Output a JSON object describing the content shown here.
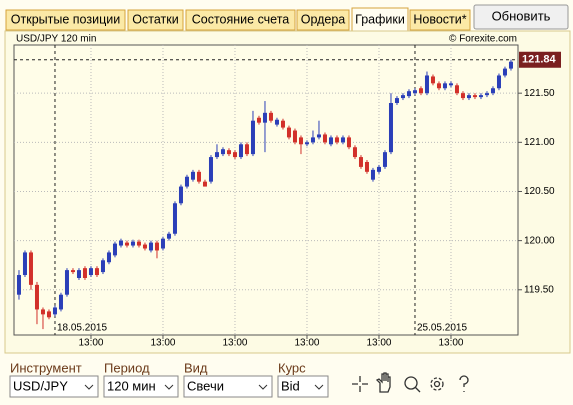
{
  "tabs": [
    "Открытые позиции",
    "Остатки",
    "Состояние счета",
    "Ордера",
    "Графики",
    "Новости*"
  ],
  "active_tab": 4,
  "button": "Обновить",
  "chart_data": {
    "type": "candlestick",
    "title": "USD/JPY 120 min",
    "source": "© Forexite.com",
    "up_color": "#2b3fb8",
    "down_color": "#d2302a",
    "xlim": [
      -0.83,
      83.17
    ],
    "ylim": [
      119.04,
      121.99
    ],
    "yticks": [
      {
        "value": 119.5,
        "label": "119.50"
      },
      {
        "value": 120,
        "label": "120.00"
      },
      {
        "value": 120.5,
        "label": "120.50"
      },
      {
        "value": 121,
        "label": "121.00"
      },
      {
        "value": 121.5,
        "label": "121.50"
      }
    ],
    "xticks": [
      {
        "value": 12,
        "label": "13:00"
      },
      {
        "value": 24,
        "label": "13:00"
      },
      {
        "value": 36,
        "label": "13:00"
      },
      {
        "value": 48,
        "label": "13:00"
      },
      {
        "value": 60,
        "label": "13:00"
      },
      {
        "value": 72,
        "label": "13:00"
      }
    ],
    "date_markers": [
      {
        "value": 6,
        "label": "18.05.2015"
      },
      {
        "value": 66,
        "label": "25.05.2015"
      }
    ],
    "current_price": 121.84,
    "grid": true,
    "open": [
      119.45,
      119.65,
      119.88,
      119.55,
      119.3,
      119.28,
      119.25,
      119.3,
      119.45,
      119.7,
      119.62,
      119.72,
      119.65,
      119.72,
      119.68,
      119.78,
      119.85,
      119.95,
      119.98,
      119.95,
      119.99,
      119.96,
      119.9,
      119.98,
      119.92,
      120.02,
      120.07,
      120.38,
      120.55,
      120.62,
      120.7,
      120.6,
      120.6,
      120.85,
      120.88,
      120.92,
      120.9,
      120.85,
      120.98,
      120.88,
      121.25,
      121.2,
      121.3,
      121.18,
      121.22,
      121.15,
      121.12,
      121.05,
      120.98,
      121.0,
      121.05,
      121.08,
      120.98,
      121.05,
      121.0,
      121.05,
      120.95,
      120.85,
      120.8,
      120.62,
      120.7,
      120.75,
      120.9,
      121.4,
      121.45,
      121.47,
      121.5,
      121.55,
      121.5,
      121.67,
      121.6,
      121.55,
      121.58,
      121.58,
      121.5,
      121.45,
      121.48,
      121.46,
      121.48,
      121.5,
      121.55,
      121.68,
      121.75
    ],
    "high": [
      119.7,
      119.9,
      119.9,
      119.58,
      119.32,
      119.3,
      119.34,
      119.47,
      119.72,
      119.72,
      119.72,
      119.74,
      119.74,
      119.74,
      119.82,
      119.9,
      119.99,
      120.02,
      120.0,
      120.01,
      120.01,
      119.98,
      120.0,
      120.0,
      120.04,
      120.09,
      120.4,
      120.57,
      120.67,
      120.72,
      120.72,
      120.62,
      120.87,
      120.98,
      120.95,
      120.94,
      120.92,
      121.0,
      121.0,
      121.32,
      121.27,
      121.42,
      121.32,
      121.25,
      121.24,
      121.17,
      121.14,
      121.07,
      121.02,
      121.12,
      121.22,
      121.1,
      121.07,
      121.07,
      121.07,
      121.07,
      120.97,
      120.87,
      120.82,
      120.74,
      120.77,
      120.92,
      121.5,
      121.47,
      121.5,
      121.54,
      121.55,
      121.57,
      121.72,
      121.69,
      121.62,
      121.62,
      121.62,
      121.6,
      121.52,
      121.5,
      121.5,
      121.5,
      121.52,
      121.57,
      121.7,
      121.77,
      121.84
    ],
    "low": [
      119.4,
      119.63,
      119.5,
      119.15,
      119.1,
      119.2,
      119.23,
      119.28,
      119.43,
      119.66,
      119.6,
      119.6,
      119.63,
      119.63,
      119.66,
      119.76,
      119.83,
      119.93,
      119.93,
      119.93,
      119.93,
      119.9,
      119.88,
      119.82,
      119.9,
      120.0,
      120.05,
      120.36,
      120.53,
      120.6,
      120.58,
      120.55,
      120.58,
      120.83,
      120.86,
      120.86,
      120.83,
      120.83,
      120.86,
      120.86,
      121.18,
      120.9,
      121.2,
      121.16,
      121.13,
      121.03,
      120.98,
      120.88,
      120.96,
      120.98,
      121.03,
      120.98,
      120.96,
      120.98,
      120.98,
      120.93,
      120.83,
      120.73,
      120.68,
      120.6,
      120.68,
      120.73,
      120.88,
      121.38,
      121.43,
      121.45,
      121.48,
      121.48,
      121.48,
      121.58,
      121.53,
      121.53,
      121.56,
      121.48,
      121.43,
      121.43,
      121.44,
      121.44,
      121.46,
      121.48,
      121.53,
      121.66,
      121.73
    ],
    "close": [
      119.65,
      119.88,
      119.55,
      119.3,
      119.25,
      119.22,
      119.32,
      119.45,
      119.7,
      119.68,
      119.7,
      119.62,
      119.72,
      119.65,
      119.8,
      119.88,
      119.97,
      120.0,
      119.95,
      119.99,
      119.95,
      119.92,
      119.98,
      119.9,
      120.02,
      120.07,
      120.38,
      120.55,
      120.65,
      120.7,
      120.6,
      120.55,
      120.85,
      120.9,
      120.93,
      120.88,
      120.85,
      120.98,
      120.88,
      121.22,
      121.2,
      121.3,
      121.22,
      121.23,
      121.15,
      121.05,
      121.0,
      120.98,
      121.0,
      121.05,
      121.08,
      121.0,
      121.05,
      121.0,
      121.05,
      120.95,
      120.85,
      120.75,
      120.7,
      120.72,
      120.75,
      120.9,
      121.4,
      121.45,
      121.48,
      121.52,
      121.53,
      121.5,
      121.68,
      121.6,
      121.55,
      121.6,
      121.6,
      121.5,
      121.45,
      121.48,
      121.46,
      121.48,
      121.5,
      121.55,
      121.68,
      121.75,
      121.82
    ]
  },
  "controls": {
    "labels": [
      "Инструмент",
      "Период",
      "Вид",
      "Курс"
    ],
    "values": [
      "USD/JPY",
      "120 мин",
      "Свечи",
      "Bid"
    ]
  }
}
